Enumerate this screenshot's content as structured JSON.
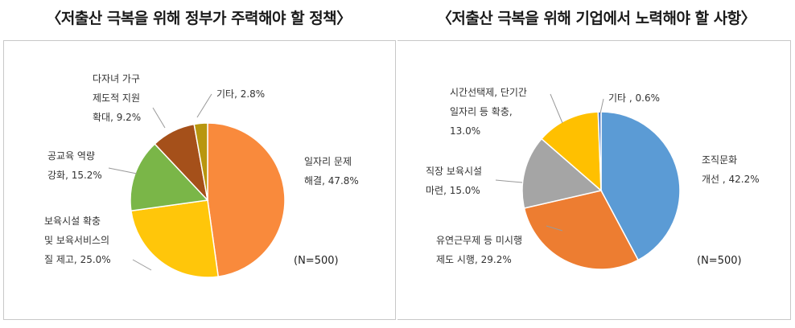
{
  "chart_data": [
    {
      "type": "pie",
      "title": "〈저출산 극복을 위해 정부가 주력해야 할 정책〉",
      "note": "(N=500)",
      "slices": [
        {
          "name": "일자리 문제 해결",
          "value": 47.8,
          "color": "#F98A3C",
          "label_lines": [
            "일자리 문제",
            "해결, 47.8%"
          ]
        },
        {
          "name": "보육시설 확충 및 보육서비스의 질 제고",
          "value": 25.0,
          "color": "#FFC60A",
          "label_lines": [
            "보육시설 확충",
            "및 보육서비스의",
            "질 제고, 25.0%"
          ]
        },
        {
          "name": "공교육 역량 강화",
          "value": 15.2,
          "color": "#7AB648",
          "label_lines": [
            "공교육 역량",
            "강화, 15.2%"
          ]
        },
        {
          "name": "다자녀 가구 제도적 지원 확대",
          "value": 9.2,
          "color": "#A5501A",
          "label_lines": [
            "다자녀 가구",
            "제도적 지원",
            "확대, 9.2%"
          ]
        },
        {
          "name": "기타",
          "value": 2.8,
          "color": "#B8960F",
          "label_lines": [
            "기타, 2.8%"
          ]
        }
      ]
    },
    {
      "type": "pie",
      "title": "〈저출산 극복을 위해 기업에서 노력해야 할 사항〉",
      "note": "(N=500)",
      "slices": [
        {
          "name": "조직문화 개선",
          "value": 42.2,
          "color": "#5B9BD5",
          "label_lines": [
            "조직문화",
            "개선 , 42.2%"
          ]
        },
        {
          "name": "유연근무제 등 미시행 제도 시행",
          "value": 29.2,
          "color": "#ED7D31",
          "label_lines": [
            "유연근무제 등 미시행",
            "제도 시행, 29.2%"
          ]
        },
        {
          "name": "직장 보육시설 마련",
          "value": 15.0,
          "color": "#A5A5A5",
          "label_lines": [
            "직장 보육시설",
            "마련, 15.0%"
          ]
        },
        {
          "name": "시간선택제, 단기간 일자리 등 확충",
          "value": 13.0,
          "color": "#FFC000",
          "label_lines": [
            "시간선택제, 단기간",
            "일자리 등 확충,",
            "13.0%"
          ]
        },
        {
          "name": "기타",
          "value": 0.6,
          "color": "#4472C4",
          "label_lines": [
            "기타 , 0.6%"
          ]
        }
      ]
    }
  ]
}
